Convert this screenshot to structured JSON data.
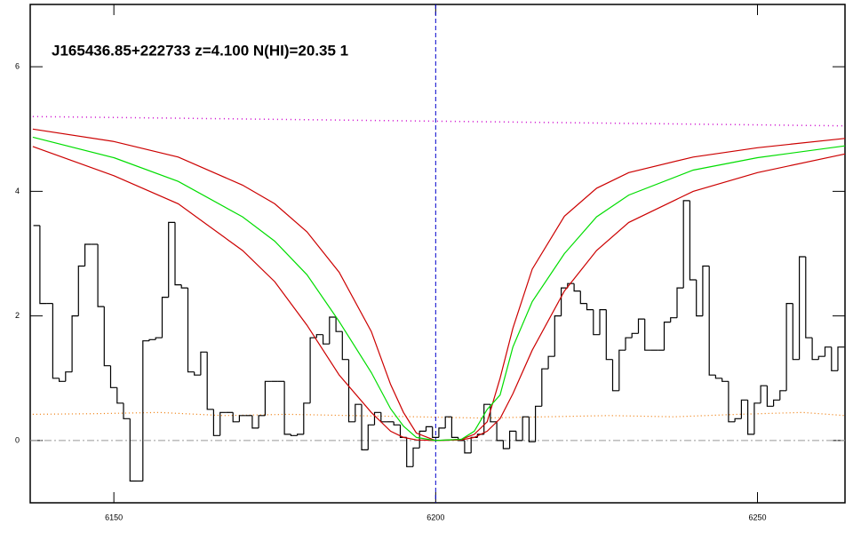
{
  "chart_data": {
    "type": "spectrum",
    "title": "J165436.85+222733 z=4.100 N(HI)=20.35 1",
    "xlim": [
      6137,
      6263.6
    ],
    "ylim": [
      -1,
      7
    ],
    "xticks": [
      6150,
      6200,
      6250
    ],
    "yticks": [
      0,
      2,
      4,
      6
    ],
    "zero_line": 0,
    "vline_x": 6200,
    "vline_color": "#0000cc",
    "flux": {
      "color": "#000000",
      "x": [
        6138,
        6139,
        6140,
        6141,
        6142,
        6143,
        6144,
        6145,
        6146,
        6147,
        6148,
        6149,
        6150,
        6151,
        6152,
        6153,
        6154,
        6155,
        6156,
        6157,
        6158,
        6159,
        6160,
        6161,
        6162,
        6163,
        6164,
        6165,
        6166,
        6167,
        6168,
        6169,
        6170,
        6171,
        6172,
        6173,
        6174,
        6175,
        6176,
        6177,
        6178,
        6179,
        6180,
        6181,
        6182,
        6183,
        6184,
        6185,
        6186,
        6187,
        6188,
        6189,
        6190,
        6191,
        6192,
        6193,
        6194,
        6195,
        6196,
        6197,
        6198,
        6199,
        6200,
        6201,
        6202,
        6203,
        6204,
        6205,
        6206,
        6207,
        6208,
        6209,
        6210,
        6211,
        6212,
        6213,
        6214,
        6215,
        6216,
        6217,
        6218,
        6219,
        6220,
        6221,
        6222,
        6223,
        6224,
        6225,
        6226,
        6227,
        6228,
        6229,
        6230,
        6231,
        6232,
        6233,
        6234,
        6235,
        6236,
        6237,
        6238,
        6239,
        6240,
        6241,
        6242,
        6243,
        6244,
        6245,
        6246,
        6247,
        6248,
        6249,
        6250,
        6251,
        6252,
        6253,
        6254,
        6255,
        6256,
        6257,
        6258,
        6259,
        6260,
        6261,
        6262,
        6263
      ],
      "values": [
        3.45,
        2.2,
        2.2,
        1.0,
        0.95,
        1.1,
        2.0,
        2.8,
        3.15,
        3.15,
        2.15,
        1.2,
        0.85,
        0.6,
        0.35,
        -0.65,
        -0.65,
        1.6,
        1.62,
        1.65,
        2.3,
        3.5,
        2.5,
        2.45,
        1.1,
        1.05,
        1.42,
        0.5,
        0.08,
        0.45,
        0.45,
        0.3,
        0.4,
        0.4,
        0.2,
        0.4,
        0.95,
        0.95,
        0.95,
        0.1,
        0.08,
        0.1,
        0.6,
        1.65,
        1.7,
        1.55,
        1.98,
        1.75,
        1.3,
        0.3,
        0.58,
        -0.15,
        0.25,
        0.45,
        0.3,
        0.3,
        0.25,
        0.05,
        -0.42,
        -0.12,
        0.15,
        0.22,
        0.05,
        0.2,
        0.38,
        0.05,
        0.0,
        -0.2,
        0.05,
        0.1,
        0.58,
        0.3,
        0.0,
        -0.13,
        0.15,
        0.0,
        0.38,
        -0.02,
        0.55,
        1.15,
        1.35,
        2.0,
        2.45,
        2.52,
        2.4,
        2.2,
        2.1,
        1.7,
        2.1,
        1.3,
        0.8,
        1.45,
        1.65,
        1.72,
        1.95,
        1.45,
        1.45,
        1.45,
        1.9,
        1.97,
        2.45,
        3.85,
        2.58,
        2.0,
        2.8,
        1.05,
        1.0,
        0.95,
        0.3,
        0.35,
        0.65,
        0.1,
        0.6,
        0.88,
        0.55,
        0.65,
        0.8,
        2.2,
        1.3,
        2.95,
        1.65,
        1.3,
        1.35,
        1.5,
        1.12,
        1.5
      ]
    },
    "model": {
      "x": [
        6137.4,
        6150,
        6160,
        6170,
        6175,
        6180,
        6185,
        6190,
        6193,
        6195,
        6197,
        6200,
        6204,
        6206,
        6208,
        6210,
        6212,
        6215,
        6220,
        6225,
        6230,
        6240,
        6250,
        6263.6
      ],
      "fit": {
        "color": "#00dd00",
        "values": [
          4.87,
          4.54,
          4.16,
          3.59,
          3.2,
          2.66,
          1.91,
          1.09,
          0.51,
          0.23,
          0.05,
          0,
          0.02,
          0.15,
          0.5,
          0.73,
          1.5,
          2.23,
          3.0,
          3.59,
          3.94,
          4.34,
          4.54,
          4.73
        ]
      },
      "upper": {
        "color": "#cc0000",
        "values": [
          5.0,
          4.8,
          4.55,
          4.1,
          3.8,
          3.35,
          2.7,
          1.75,
          0.9,
          0.45,
          0.12,
          0,
          0.02,
          0.1,
          0.3,
          1.0,
          1.8,
          2.75,
          3.6,
          4.05,
          4.3,
          4.55,
          4.7,
          4.85
        ]
      },
      "lower": {
        "color": "#cc0000",
        "values": [
          4.72,
          4.25,
          3.8,
          3.05,
          2.55,
          1.85,
          1.05,
          0.45,
          0.15,
          0.05,
          0.01,
          0,
          0.01,
          0.05,
          0.15,
          0.35,
          0.75,
          1.45,
          2.4,
          3.05,
          3.5,
          4.0,
          4.3,
          4.6
        ]
      }
    },
    "continuum": {
      "color": "#cc00cc",
      "x": [
        6137.4,
        6263.6
      ],
      "values": [
        5.2,
        5.05
      ]
    },
    "error": {
      "color": "#ee7700",
      "x": [
        6137.4,
        6147,
        6157,
        6167,
        6177,
        6187,
        6197,
        6207,
        6217,
        6227,
        6237,
        6247,
        6257,
        6263.6
      ],
      "values": [
        0.42,
        0.43,
        0.45,
        0.4,
        0.42,
        0.4,
        0.38,
        0.36,
        0.38,
        0.4,
        0.38,
        0.42,
        0.45,
        0.4
      ]
    }
  }
}
